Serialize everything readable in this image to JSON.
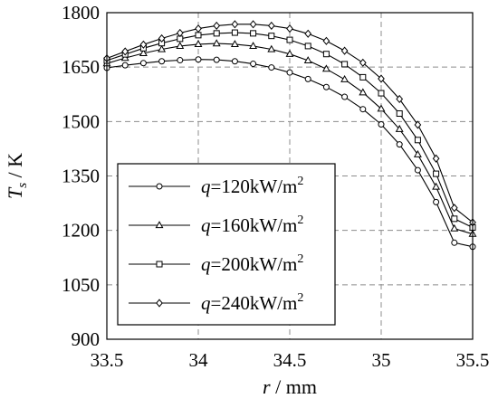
{
  "chart_data": {
    "type": "line",
    "xlabel": {
      "var": "r",
      "unit": "mm"
    },
    "ylabel": {
      "var": "T",
      "sub": "s",
      "unit": "K"
    },
    "xlim": [
      33.5,
      35.5
    ],
    "ylim": [
      900,
      1800
    ],
    "xticks": [
      33.5,
      34,
      34.5,
      35,
      35.5
    ],
    "yticks": [
      900,
      1050,
      1200,
      1350,
      1500,
      1650,
      1800
    ],
    "grid": true,
    "legend_position": "bottom-left",
    "series": [
      {
        "name": "q=120kW/m2",
        "label": {
          "var": "q",
          "rest": "=120kW/m",
          "sup": "2"
        },
        "marker": "circle",
        "x": [
          33.5,
          33.6,
          33.7,
          33.8,
          33.9,
          34.0,
          34.1,
          34.2,
          34.3,
          34.4,
          34.5,
          34.6,
          34.7,
          34.8,
          34.9,
          35.0,
          35.1,
          35.2,
          35.3,
          35.4,
          35.5
        ],
        "y": [
          1648,
          1655,
          1661,
          1666,
          1669,
          1671,
          1670,
          1666,
          1659,
          1649,
          1635,
          1617,
          1595,
          1568,
          1534,
          1492,
          1437,
          1366,
          1278,
          1166,
          1155
        ]
      },
      {
        "name": "q=160kW/m2",
        "label": {
          "var": "q",
          "rest": "=160kW/m",
          "sup": "2"
        },
        "marker": "triangle",
        "x": [
          33.5,
          33.6,
          33.7,
          33.8,
          33.9,
          34.0,
          34.1,
          34.2,
          34.3,
          34.4,
          34.5,
          34.6,
          34.7,
          34.8,
          34.9,
          35.0,
          35.1,
          35.2,
          35.3,
          35.4,
          35.5
        ],
        "y": [
          1660,
          1675,
          1688,
          1699,
          1708,
          1713,
          1715,
          1713,
          1708,
          1699,
          1686,
          1668,
          1645,
          1616,
          1580,
          1535,
          1479,
          1409,
          1320,
          1205,
          1190
        ]
      },
      {
        "name": "q=200kW/m2",
        "label": {
          "var": "q",
          "rest": "=200kW/m",
          "sup": "2"
        },
        "marker": "square",
        "x": [
          33.5,
          33.6,
          33.7,
          33.8,
          33.9,
          34.0,
          34.1,
          34.2,
          34.3,
          34.4,
          34.5,
          34.6,
          34.7,
          34.8,
          34.9,
          35.0,
          35.1,
          35.2,
          35.3,
          35.4,
          35.5
        ],
        "y": [
          1668,
          1685,
          1702,
          1716,
          1728,
          1738,
          1743,
          1745,
          1743,
          1736,
          1725,
          1708,
          1686,
          1658,
          1622,
          1578,
          1522,
          1449,
          1356,
          1232,
          1208
        ]
      },
      {
        "name": "q=240kW/m2",
        "label": {
          "var": "q",
          "rest": "=240kW/m",
          "sup": "2"
        },
        "marker": "diamond",
        "x": [
          33.5,
          33.6,
          33.7,
          33.8,
          33.9,
          34.0,
          34.1,
          34.2,
          34.3,
          34.4,
          34.5,
          34.6,
          34.7,
          34.8,
          34.9,
          35.0,
          35.1,
          35.2,
          35.3,
          35.4,
          35.5
        ],
        "y": [
          1674,
          1693,
          1712,
          1729,
          1744,
          1756,
          1764,
          1768,
          1768,
          1764,
          1756,
          1742,
          1722,
          1695,
          1662,
          1618,
          1562,
          1491,
          1398,
          1262,
          1222
        ]
      }
    ]
  }
}
